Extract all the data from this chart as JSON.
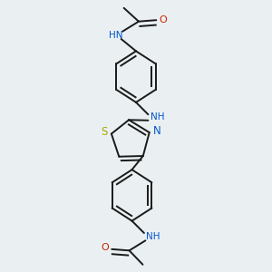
{
  "background_color": "#eaf0f2",
  "bond_color": "#1a1a1a",
  "nitrogen_color": "#0055cc",
  "oxygen_color": "#cc2200",
  "sulfur_color": "#aaaa00",
  "lw": 1.4,
  "dbo": 0.018,
  "figsize": [
    3.0,
    3.0
  ],
  "dpi": 100,
  "xlim": [
    0.15,
    0.85
  ],
  "ylim": [
    0.02,
    1.02
  ]
}
